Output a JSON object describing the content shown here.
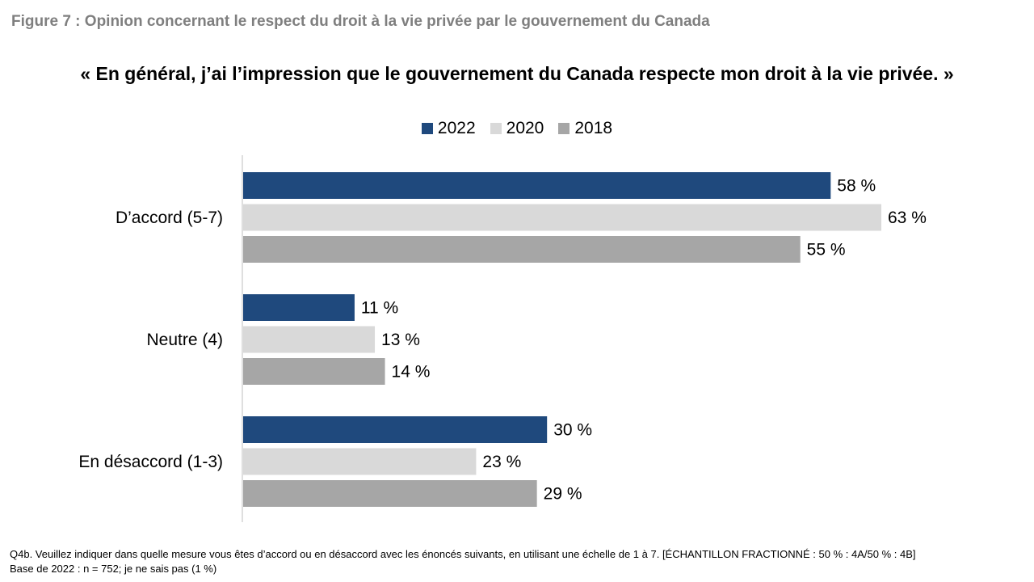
{
  "figure_title": "Figure 7 : Opinion concernant le respect du droit à la vie privée par le gouvernement du Canada",
  "chart_data": {
    "type": "bar",
    "orientation": "horizontal",
    "title": "« En général, j’ai l’impression que le gouvernement du Canada respecte mon droit à la vie privée. »",
    "categories": [
      "D’accord (5-7)",
      "Neutre (4)",
      "En désaccord (1-3)"
    ],
    "series": [
      {
        "name": "2022",
        "color": "#1f497d",
        "values": [
          58,
          11,
          30
        ],
        "labels": [
          "58 %",
          "11 %",
          "30 %"
        ]
      },
      {
        "name": "2020",
        "color": "#d9d9d9",
        "values": [
          63,
          13,
          23
        ],
        "labels": [
          "63 %",
          "13 %",
          "23 %"
        ]
      },
      {
        "name": "2018",
        "color": "#a6a6a6",
        "values": [
          55,
          14,
          29
        ],
        "labels": [
          "55 %",
          "14 %",
          "29 %"
        ]
      }
    ],
    "xlim": [
      0,
      63
    ],
    "legend_position": "top",
    "grid": false
  },
  "footnotes": {
    "question": "Q4b. Veuillez indiquer dans quelle mesure vous êtes d’accord ou en désaccord avec les énoncés suivants, en utilisant une échelle de 1 à 7. [ÉCHANTILLON FRACTIONNÉ : 50 % : 4A/50 % : 4B]",
    "base": "Base de 2022 : n = 752; je ne sais pas (1 %)"
  }
}
